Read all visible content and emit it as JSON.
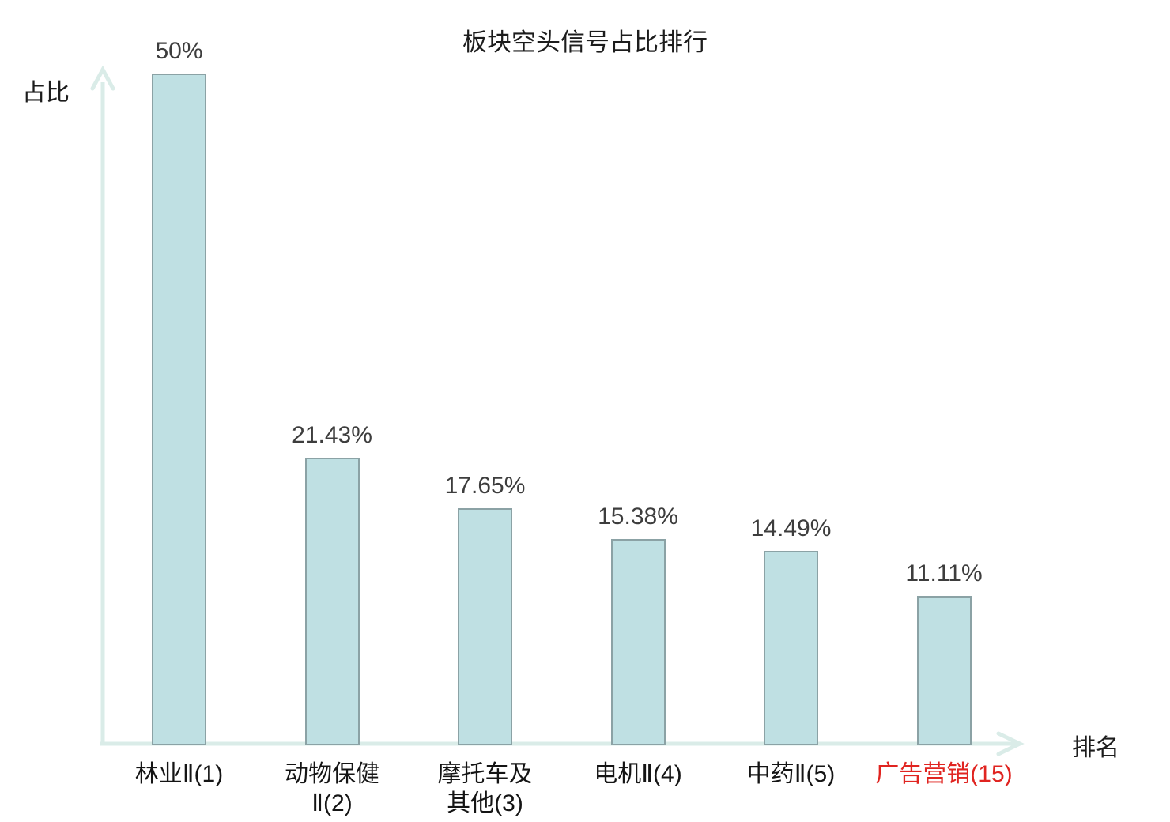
{
  "title": "板块空头信号占比排行",
  "axes": {
    "y_label": "占比",
    "x_label": "排名"
  },
  "chart_data": {
    "type": "bar",
    "title": "板块空头信号占比排行",
    "xlabel": "排名",
    "ylabel": "占比",
    "categories": [
      "林业Ⅱ(1)",
      "动物保健Ⅱ(2)",
      "摩托车及其他(3)",
      "电机Ⅱ(4)",
      "中药Ⅱ(5)",
      "广告营销(15)"
    ],
    "category_lines": [
      [
        "林业Ⅱ(1)"
      ],
      [
        "动物保健",
        "Ⅱ(2)"
      ],
      [
        "摩托车及",
        "其他(3)"
      ],
      [
        "电机Ⅱ(4)"
      ],
      [
        "中药Ⅱ(5)"
      ],
      [
        "广告营销(15)"
      ]
    ],
    "values": [
      50,
      21.43,
      17.65,
      15.38,
      14.49,
      11.11
    ],
    "value_labels": [
      "50%",
      "21.43%",
      "17.65%",
      "15.38%",
      "14.49%",
      "11.11%"
    ],
    "ylim": [
      0,
      50
    ],
    "grid": false,
    "legend": false,
    "highlighted_index": 5
  },
  "colors": {
    "background": "#ffffff",
    "bar_fill": "#bfe0e3",
    "bar_border": "#8ba2a5",
    "axis": "#daece8",
    "value_label": "#3d3d3d",
    "category_label": "#141414",
    "highlight": "#e02420"
  }
}
